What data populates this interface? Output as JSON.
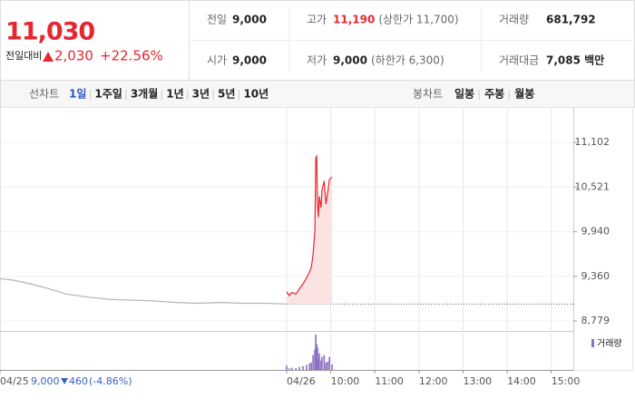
{
  "header": {
    "price": "11,030",
    "change_label": "전일대비",
    "change": "2,030",
    "rate": "+22.56%"
  },
  "info": {
    "rows": [
      [
        {
          "label": "전일",
          "value": "9,000"
        },
        {
          "label": "고가",
          "value": "11,190",
          "note": "(상한가 11,700)"
        },
        {
          "label": "거래량",
          "value": "681,792"
        }
      ],
      [
        {
          "label": "시가",
          "value": "9,000"
        },
        {
          "label": "저가",
          "value": "9,000",
          "note": "(하한가 6,300)"
        },
        {
          "label": "거래대금",
          "value": "7,085 백만"
        }
      ]
    ]
  },
  "tabs": {
    "line_label": "선차트",
    "line_items": [
      "1일",
      "1주일",
      "3개월",
      "1년",
      "3년",
      "5년",
      "10년"
    ],
    "candle_label": "봉차트",
    "candle_items": [
      "일봉",
      "주봉",
      "월봉"
    ]
  },
  "caption": {
    "price": "9,000",
    "change": "460",
    "rate": "(-4.86%)"
  },
  "chart_data": {
    "type": "line",
    "xlim": [
      2.5,
      15.5
    ],
    "xticks": [
      {
        "value": 2.5,
        "label": "04/25"
      },
      {
        "value": 9,
        "label": "04/26"
      },
      {
        "value": 10,
        "label": "10:00"
      },
      {
        "value": 11,
        "label": "11:00"
      },
      {
        "value": 12,
        "label": "12:00"
      },
      {
        "value": 13,
        "label": "13:00"
      },
      {
        "value": 14,
        "label": "14:00"
      },
      {
        "value": 15,
        "label": "15:00"
      }
    ],
    "ylim": [
      8650,
      11515
    ],
    "yticks": [
      {
        "value": 11102,
        "label": "11,102"
      },
      {
        "value": 10521,
        "label": "10,521"
      },
      {
        "value": 9940,
        "label": "9,940"
      },
      {
        "value": 9360,
        "label": "9,360"
      },
      {
        "value": 8779,
        "label": "8,779"
      }
    ],
    "reference": 9000,
    "series": [
      {
        "color": "#b4b4b4",
        "x": [
          2.5,
          2.8,
          3.2,
          3.6,
          4.0,
          4.5,
          5.0,
          5.5,
          6.0,
          6.5,
          7.0,
          7.5,
          8.0,
          8.5,
          9.0
        ],
        "values": [
          9330,
          9310,
          9260,
          9200,
          9130,
          9090,
          9060,
          9050,
          9040,
          9020,
          9010,
          9020,
          9010,
          9010,
          9000
        ]
      },
      {
        "color": "#e8262f",
        "fill": "#fbe3e4",
        "x": [
          9.0,
          9.06,
          9.12,
          9.21,
          9.29,
          9.37,
          9.45,
          9.52,
          9.56,
          9.6,
          9.64,
          9.66,
          9.68,
          9.7,
          9.72,
          9.74,
          9.78,
          9.8,
          9.85,
          9.89,
          9.93,
          9.97,
          10.03
        ],
        "values": [
          9160,
          9110,
          9150,
          9130,
          9200,
          9260,
          9340,
          9420,
          9480,
          9650,
          9950,
          10900,
          10920,
          10300,
          10130,
          10400,
          10250,
          10480,
          10600,
          10300,
          10450,
          10620,
          10650
        ]
      }
    ],
    "volume": {
      "name": "거래량",
      "color": "#8c6fc4",
      "ylim": [
        0,
        100
      ],
      "x": [
        9.0,
        9.06,
        9.12,
        9.21,
        9.29,
        9.37,
        9.45,
        9.52,
        9.56,
        9.6,
        9.64,
        9.66,
        9.68,
        9.7,
        9.72,
        9.74,
        9.78,
        9.8,
        9.85,
        9.89,
        9.93,
        9.97,
        10.03
      ],
      "values": [
        12,
        4,
        6,
        5,
        8,
        10,
        14,
        18,
        20,
        40,
        55,
        95,
        70,
        60,
        30,
        45,
        25,
        35,
        40,
        20,
        22,
        35,
        15
      ]
    }
  }
}
